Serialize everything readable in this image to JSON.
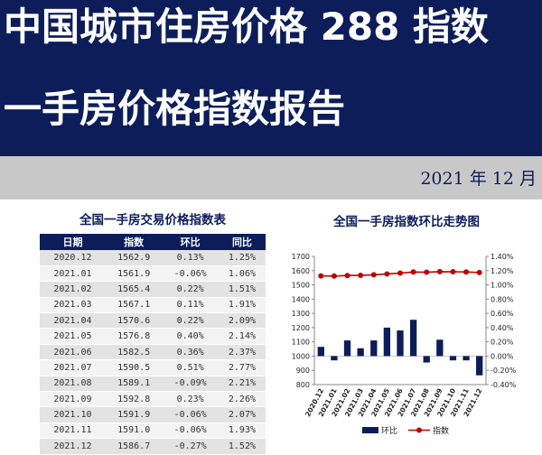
{
  "header": {
    "line1": "中国城市住房价格 288 指数",
    "line2": "一手房价格指数报告",
    "date": "2021 年 12 月"
  },
  "colors": {
    "navy": "#0c1d5a",
    "red": "#c00000",
    "gray": "#c8c8c8"
  },
  "table": {
    "title": "全国一手房交易价格指数表",
    "headers": [
      "日期",
      "指数",
      "环比",
      "同比"
    ],
    "rows": [
      [
        "2020.12",
        "1562.9",
        "0.13%",
        "1.25%"
      ],
      [
        "2021.01",
        "1561.9",
        "-0.06%",
        "1.06%"
      ],
      [
        "2021.02",
        "1565.4",
        "0.22%",
        "1.51%"
      ],
      [
        "2021.03",
        "1567.1",
        "0.11%",
        "1.91%"
      ],
      [
        "2021.04",
        "1570.6",
        "0.22%",
        "2.09%"
      ],
      [
        "2021.05",
        "1576.8",
        "0.40%",
        "2.14%"
      ],
      [
        "2021.06",
        "1582.5",
        "0.36%",
        "2.37%"
      ],
      [
        "2021.07",
        "1590.5",
        "0.51%",
        "2.77%"
      ],
      [
        "2021.08",
        "1589.1",
        "-0.09%",
        "2.21%"
      ],
      [
        "2021.09",
        "1592.8",
        "0.23%",
        "2.26%"
      ],
      [
        "2021.10",
        "1591.9",
        "-0.06%",
        "2.07%"
      ],
      [
        "2021.11",
        "1591.0",
        "-0.06%",
        "1.93%"
      ],
      [
        "2021.12",
        "1586.7",
        "-0.27%",
        "1.52%"
      ]
    ]
  },
  "chart_data": {
    "type": "bar",
    "title": "全国一手房指数环比走势图",
    "categories": [
      "2020.12",
      "2021.01",
      "2021.02",
      "2021.03",
      "2021.04",
      "2021.05",
      "2021.06",
      "2021.07",
      "2021.08",
      "2021.09",
      "2021.10",
      "2021.11",
      "2021.12"
    ],
    "series": [
      {
        "name": "环比",
        "type": "bar",
        "axis": "right",
        "color": "#0c1d5a",
        "values": [
          0.13,
          -0.06,
          0.22,
          0.11,
          0.22,
          0.4,
          0.36,
          0.51,
          -0.09,
          0.23,
          -0.06,
          -0.06,
          -0.27
        ]
      },
      {
        "name": "指数",
        "type": "line",
        "axis": "left",
        "color": "#c00000",
        "values": [
          1562.9,
          1561.9,
          1565.4,
          1567.1,
          1570.6,
          1576.8,
          1582.5,
          1590.5,
          1589.1,
          1592.8,
          1591.9,
          1591.0,
          1586.7
        ]
      }
    ],
    "y_left": {
      "min": 800,
      "max": 1700,
      "step": 100,
      "ticks": [
        "800",
        "900",
        "1000",
        "1100",
        "1200",
        "1300",
        "1400",
        "1500",
        "1600",
        "1700"
      ]
    },
    "y_right": {
      "min": -0.4,
      "max": 1.4,
      "step": 0.2,
      "ticks": [
        "-0.40%",
        "-0.20%",
        "0.00%",
        "0.20%",
        "0.40%",
        "0.60%",
        "0.80%",
        "1.00%",
        "1.20%",
        "1.40%"
      ]
    },
    "grid": false,
    "legend": "bottom"
  }
}
